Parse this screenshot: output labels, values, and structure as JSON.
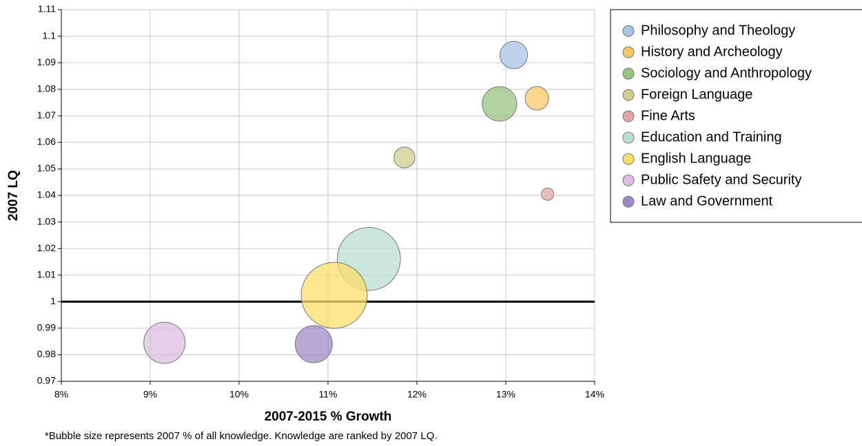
{
  "chart_data": {
    "type": "scatter",
    "x_label": "2007-2015 % Growth",
    "y_label": "2007 LQ",
    "footnote": "*Bubble size represents 2007 % of all knowledge. Knowledge are ranked by 2007 LQ.",
    "xlim": [
      8,
      14
    ],
    "xticks": [
      {
        "value": 8,
        "label": "8%"
      },
      {
        "value": 9,
        "label": "9%"
      },
      {
        "value": 10,
        "label": "10%"
      },
      {
        "value": 11,
        "label": "11%"
      },
      {
        "value": 12,
        "label": "12%"
      },
      {
        "value": 13,
        "label": "13%"
      },
      {
        "value": 14,
        "label": "14%"
      }
    ],
    "ylim": [
      0.97,
      1.11
    ],
    "yticks": [
      0.97,
      0.98,
      0.99,
      1,
      1.01,
      1.02,
      1.03,
      1.04,
      1.05,
      1.06,
      1.07,
      1.08,
      1.09,
      1.1,
      1.11
    ],
    "grid": true,
    "reference_line": 1,
    "legend": "right",
    "series": [
      {
        "name": "Philosophy and Theology",
        "color": "#a6c4e4",
        "x": [
          13.09
        ],
        "values": [
          1.0929
        ],
        "size": [
          4.0
        ]
      },
      {
        "name": "History and Archeology",
        "color": "#fcc766",
        "x": [
          13.35
        ],
        "values": [
          1.0766
        ],
        "size": [
          2.9
        ]
      },
      {
        "name": "Sociology and Anthropology",
        "color": "#98c47d",
        "x": [
          12.93
        ],
        "values": [
          1.0745
        ],
        "size": [
          6.3
        ]
      },
      {
        "name": "Foreign Language",
        "color": "#cfcd8f",
        "x": [
          11.86
        ],
        "values": [
          1.0543
        ],
        "size": [
          2.3
        ]
      },
      {
        "name": "Fine Arts",
        "color": "#e3a8a5",
        "x": [
          13.47
        ],
        "values": [
          1.0405
        ],
        "size": [
          0.8
        ]
      },
      {
        "name": "Education and Training",
        "color": "#b9dfd0",
        "x": [
          11.46
        ],
        "values": [
          1.0161
        ],
        "size": [
          21
        ]
      },
      {
        "name": "English Language",
        "color": "#fbdf6b",
        "x": [
          11.07
        ],
        "values": [
          1.0024
        ],
        "size": [
          23
        ]
      },
      {
        "name": "Public Safety and Security",
        "color": "#dcbedf",
        "x": [
          9.16
        ],
        "values": [
          0.9845
        ],
        "size": [
          9
        ]
      },
      {
        "name": "Law and Government",
        "color": "#9f88c8",
        "x": [
          10.84
        ],
        "values": [
          0.984
        ],
        "size": [
          7.3
        ]
      }
    ]
  }
}
